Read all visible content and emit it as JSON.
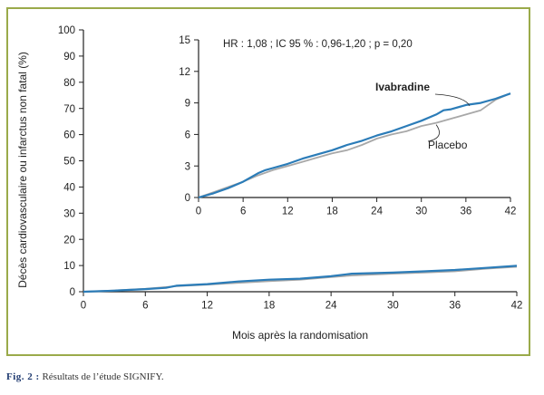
{
  "caption": {
    "label": "Fig. 2 :",
    "text": "Résultats de l’étude SIGNIFY."
  },
  "colors": {
    "frame": "#9aaa4a",
    "ivabradine": "#2b7cb8",
    "placebo": "#a8a8a8",
    "axis": "#222222"
  },
  "chart_data": [
    {
      "id": "main",
      "type": "line",
      "xlabel": "Mois après la randomisation",
      "ylabel": "Décès cardiovasculaire ou infarctus non fatal (%)",
      "xlim": [
        0,
        42
      ],
      "ylim": [
        0,
        100
      ],
      "xticks": [
        0,
        6,
        12,
        18,
        24,
        30,
        36,
        42
      ],
      "yticks": [
        0,
        10,
        20,
        30,
        40,
        50,
        60,
        70,
        80,
        90,
        100
      ],
      "grid": false,
      "series": [
        {
          "key": "ivabradine",
          "x": [
            0,
            3,
            6,
            8,
            9,
            12,
            15,
            18,
            21,
            24,
            26,
            30,
            33,
            36,
            39,
            42
          ],
          "y": [
            0,
            0.4,
            1.0,
            1.5,
            2.3,
            2.9,
            3.9,
            4.6,
            5.0,
            5.9,
            6.9,
            7.3,
            7.8,
            8.3,
            9.1,
            9.9
          ]
        },
        {
          "key": "placebo",
          "x": [
            0,
            3,
            6,
            9,
            12,
            15,
            18,
            21,
            24,
            26,
            30,
            33,
            36,
            39,
            42
          ],
          "y": [
            0,
            0.5,
            1.1,
            2.1,
            2.7,
            3.4,
            4.0,
            4.6,
            5.6,
            6.2,
            6.9,
            7.3,
            7.8,
            8.8,
            9.5
          ]
        }
      ]
    },
    {
      "id": "inset",
      "type": "line",
      "annotation": "HR : 1,08 ; IC 95 % : 0,96-1,20 ; p = 0,20",
      "xlim": [
        0,
        42
      ],
      "ylim": [
        0,
        15
      ],
      "xticks": [
        0,
        6,
        12,
        18,
        24,
        30,
        36,
        42
      ],
      "yticks": [
        0,
        3,
        6,
        9,
        12,
        15
      ],
      "grid": false,
      "series": [
        {
          "name": "Ivabradine",
          "key": "ivabradine",
          "x": [
            0,
            2,
            4,
            6,
            8,
            9,
            10,
            12,
            14,
            16,
            18,
            20,
            22,
            24,
            26,
            28,
            30,
            32,
            33,
            34,
            36,
            38,
            40,
            42
          ],
          "y": [
            0,
            0.4,
            0.9,
            1.5,
            2.3,
            2.6,
            2.8,
            3.2,
            3.7,
            4.1,
            4.5,
            5.0,
            5.4,
            5.9,
            6.3,
            6.8,
            7.3,
            7.9,
            8.3,
            8.4,
            8.8,
            9.0,
            9.4,
            9.9
          ]
        },
        {
          "name": "Placebo",
          "key": "placebo",
          "x": [
            0,
            2,
            4,
            6,
            8,
            10,
            12,
            14,
            16,
            18,
            20,
            22,
            24,
            26,
            28,
            30,
            32,
            34,
            36,
            38,
            40,
            42
          ],
          "y": [
            0,
            0.5,
            1.0,
            1.5,
            2.1,
            2.6,
            3.0,
            3.4,
            3.8,
            4.2,
            4.5,
            5.0,
            5.6,
            6.0,
            6.3,
            6.8,
            7.1,
            7.5,
            7.9,
            8.3,
            9.3,
            9.9
          ]
        }
      ]
    }
  ]
}
